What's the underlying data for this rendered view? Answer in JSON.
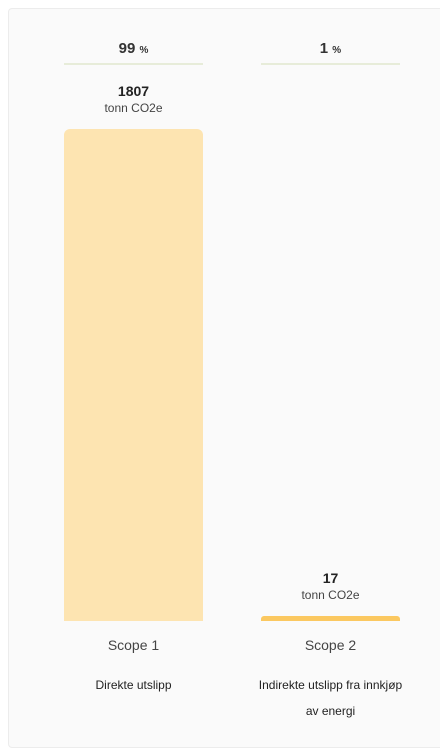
{
  "chart_data": {
    "type": "bar",
    "categories": [
      "Scope 1",
      "Scope 2"
    ],
    "descriptions": [
      "Direkte utslipp",
      "Indirekte utslipp fra innkjøp av energi"
    ],
    "values": [
      1807,
      17
    ],
    "unit": "tonn CO2e",
    "shares": [
      99,
      1
    ],
    "share_unit": "%",
    "colors": [
      "#fde4b1",
      "#fbc860"
    ],
    "ylim": [
      0,
      1807
    ]
  }
}
